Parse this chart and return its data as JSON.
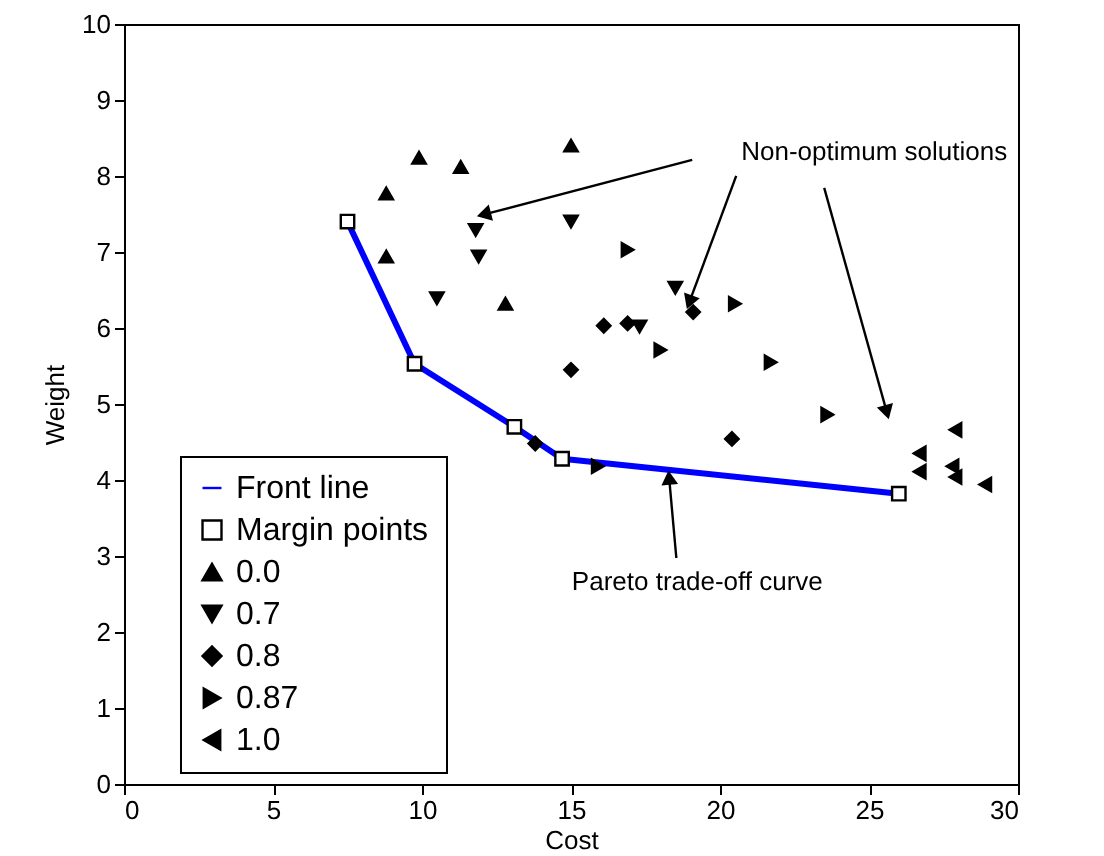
{
  "chart_data": {
    "type": "scatter",
    "xlabel": "Cost",
    "ylabel": "Weight",
    "xlim": [
      0,
      30
    ],
    "ylim": [
      0,
      10
    ],
    "xticks": [
      0,
      5,
      10,
      15,
      20,
      25,
      30
    ],
    "yticks": [
      0,
      1,
      2,
      3,
      4,
      5,
      6,
      7,
      8,
      9,
      10
    ],
    "grid": false,
    "legend": "bottom left",
    "annotations": [
      {
        "text": "Non-optimum solutions",
        "x": 19.0,
        "y": 6.37
      },
      {
        "text": "Pareto trade-off curve",
        "x": 18.3,
        "y": 4.0
      }
    ],
    "series": [
      {
        "name": "Front line",
        "type": "line",
        "color": "#0000ff",
        "marker": "none",
        "x": [
          7.5,
          9.75,
          13.1,
          14.7,
          26.0
        ],
        "values": [
          7.4,
          5.53,
          4.7,
          4.28,
          3.82
        ]
      },
      {
        "name": "Margin points",
        "color": "#000000",
        "marker": "square",
        "x": [
          7.5,
          9.75,
          13.1,
          14.7,
          26.0
        ],
        "values": [
          7.4,
          5.53,
          4.7,
          4.28,
          3.82
        ]
      },
      {
        "name": "0.0",
        "color": "#000000",
        "marker": "triangle-up",
        "x": [
          9.9,
          11.3,
          8.8,
          8.8,
          12.8,
          15.0
        ],
        "values": [
          8.24,
          8.12,
          7.77,
          6.94,
          6.32,
          8.4
        ]
      },
      {
        "name": "0.7",
        "color": "#000000",
        "marker": "triangle-down",
        "x": [
          11.8,
          15.0,
          11.9,
          10.5,
          18.5,
          17.3
        ],
        "values": [
          7.29,
          7.4,
          6.94,
          6.39,
          6.53,
          6.02
        ]
      },
      {
        "name": "0.8",
        "color": "#000000",
        "marker": "diamond",
        "x": [
          16.1,
          16.9,
          15.0,
          13.8,
          19.1,
          20.4
        ],
        "values": [
          6.03,
          6.06,
          5.45,
          4.48,
          6.21,
          4.54
        ]
      },
      {
        "name": "0.87",
        "color": "#000000",
        "marker": "triangle-right",
        "x": [
          16.9,
          18.0,
          15.9,
          20.5,
          21.7,
          23.6
        ],
        "values": [
          7.03,
          5.71,
          4.18,
          6.32,
          5.55,
          4.86
        ]
      },
      {
        "name": "1.0",
        "color": "#000000",
        "marker": "triangle-left",
        "x": [
          27.9,
          26.7,
          26.7,
          27.8,
          27.9,
          28.9
        ],
        "values": [
          4.66,
          4.35,
          4.11,
          4.18,
          4.04,
          3.94
        ]
      }
    ]
  }
}
